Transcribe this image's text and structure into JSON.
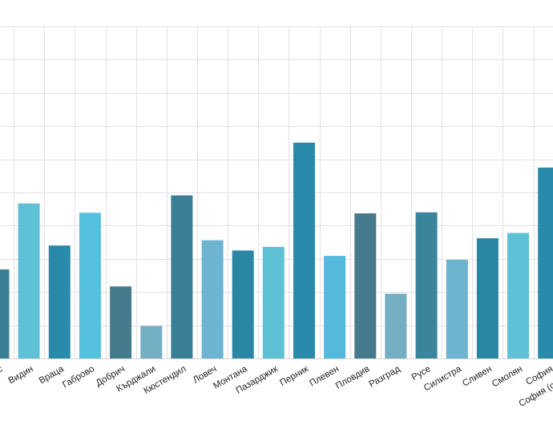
{
  "chart_data": {
    "type": "bar",
    "title": "",
    "xlabel": "",
    "ylabel": "",
    "grid": true,
    "legend": "none",
    "ylim": [
      0,
      10
    ],
    "categories": [
      "Бургас",
      "Видин",
      "Враца",
      "Габрово",
      "Добрич",
      "Кърджали",
      "Кюстендил",
      "Ловеч",
      "Монтана",
      "Пазарджик",
      "Перник",
      "Плевен",
      "Пловдив",
      "Разград",
      "Русе",
      "Силистра",
      "Сливен",
      "Смолян",
      "София",
      "София (столица)"
    ],
    "values": [
      2.68,
      4.67,
      3.4,
      4.39,
      2.17,
      0.98,
      4.91,
      3.56,
      3.25,
      3.36,
      6.5,
      3.09,
      4.37,
      1.95,
      4.4,
      2.97,
      3.62,
      3.78,
      5.75,
      5.5
    ],
    "colors": [
      "#3a7f96",
      "#5ec1d6",
      "#2a8aab",
      "#55c1df",
      "#467a8d",
      "#74aec2",
      "#3a7f96",
      "#6cb4cf",
      "#2b86a3",
      "#5ec1d6",
      "#2a8aab",
      "#55b8dd",
      "#467a8d",
      "#74aec2",
      "#3a849c",
      "#6cb4cf",
      "#2b86a3",
      "#5ec1d6",
      "#2a8aab",
      "#55c1df"
    ]
  }
}
